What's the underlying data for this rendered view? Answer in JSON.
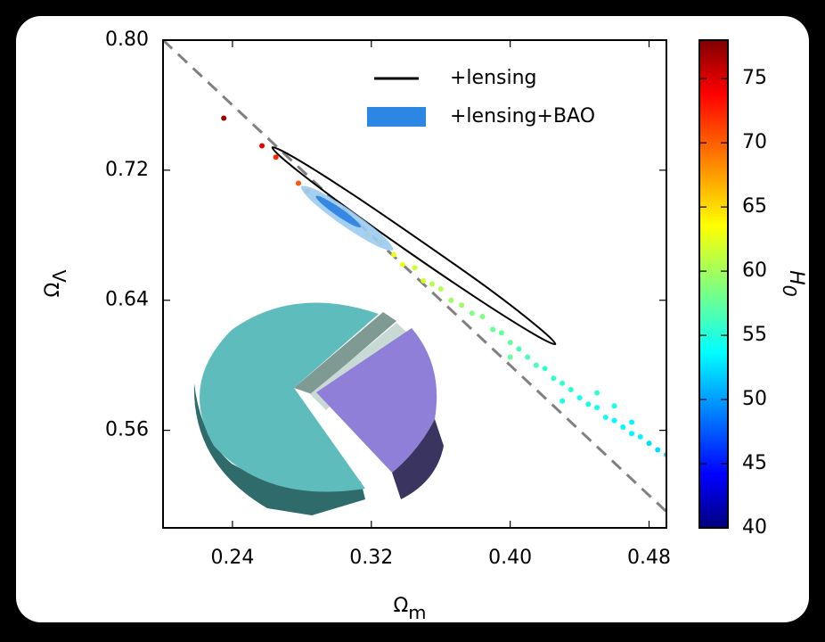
{
  "chart_data": {
    "type": "scatter",
    "xlabel": {
      "symbol": "Ω",
      "subscript": "m"
    },
    "ylabel": {
      "symbol": "Ω",
      "subscript": "Λ"
    },
    "xlim": [
      0.2,
      0.49
    ],
    "ylim": [
      0.5,
      0.8
    ],
    "xticks": [
      0.24,
      0.32,
      {
        "value": 0.4,
        "label": "0.40"
      },
      0.48
    ],
    "yticks": [
      {
        "value": 0.8,
        "label": "0.80"
      },
      0.72,
      0.64,
      0.56
    ],
    "points": {
      "colormap": "jet",
      "x": [
        0.235,
        0.257,
        0.265,
        0.278,
        0.283,
        0.29,
        0.3,
        0.31,
        0.318,
        0.325,
        0.333,
        0.338,
        0.345,
        0.35,
        0.355,
        0.36,
        0.366,
        0.372,
        0.378,
        0.384,
        0.39,
        0.395,
        0.4,
        0.405,
        0.41,
        0.415,
        0.42,
        0.425,
        0.43,
        0.435,
        0.44,
        0.445,
        0.45,
        0.455,
        0.46,
        0.465,
        0.47,
        0.475,
        0.48,
        0.485,
        0.49,
        0.4,
        0.43,
        0.46,
        0.47,
        0.45
      ],
      "y": [
        0.752,
        0.735,
        0.728,
        0.712,
        0.707,
        0.703,
        0.695,
        0.688,
        0.68,
        0.676,
        0.668,
        0.662,
        0.66,
        0.652,
        0.65,
        0.647,
        0.64,
        0.637,
        0.632,
        0.63,
        0.622,
        0.62,
        0.614,
        0.61,
        0.605,
        0.6,
        0.598,
        0.592,
        0.589,
        0.585,
        0.58,
        0.576,
        0.574,
        0.568,
        0.566,
        0.562,
        0.558,
        0.556,
        0.552,
        0.548,
        0.545,
        0.605,
        0.578,
        0.575,
        0.565,
        0.583
      ],
      "H0": [
        77,
        74,
        72,
        70,
        68,
        66,
        65,
        64,
        64,
        64,
        63,
        63,
        62,
        62,
        61,
        61,
        60,
        60,
        59,
        59,
        58,
        58,
        58,
        57,
        57,
        57,
        56,
        56,
        56,
        56,
        55,
        55,
        55,
        55,
        54,
        54,
        54,
        54,
        53,
        53,
        53,
        58,
        55,
        55,
        54,
        56
      ]
    },
    "reference_line": {
      "x": [
        0.2,
        0.49
      ],
      "y": [
        0.8,
        0.51
      ],
      "color": "#808080",
      "style": "dashed"
    },
    "series": [
      {
        "name": "+lensing",
        "kind": "contour",
        "color": "#000000",
        "x": [
          0.426,
          0.4138,
          0.383,
          0.3419,
          0.3015,
          0.2726,
          0.263,
          0.2752,
          0.306,
          0.3471,
          0.388,
          0.4164
        ],
        "y": [
          0.613,
          0.6191,
          0.6397,
          0.6694,
          0.7002,
          0.7239,
          0.734,
          0.728,
          0.7074,
          0.6776,
          0.6468,
          0.6232
        ]
      },
      {
        "name": "+lensing+BAO",
        "kind": "filled-contour",
        "color": "#2b87e3",
        "levels": [
          {
            "color": "#9ccbf0",
            "x": [
              0.3325,
              0.3229,
              0.3035,
              0.2855,
              0.2795,
              0.2891,
              0.3085,
              0.3265
            ],
            "y": [
              0.671,
              0.6735,
              0.686,
              0.7011,
              0.71,
              0.7075,
              0.695,
              0.6799
            ]
          },
          {
            "color": "#2a7fe0",
            "x": [
              0.314,
              0.3093,
              0.2998,
              0.291,
              0.288,
              0.2927,
              0.3022,
              0.311
            ],
            "y": [
              0.685,
              0.6862,
              0.6923,
              0.6997,
              0.704,
              0.7028,
              0.6967,
              0.6893
            ]
          }
        ]
      }
    ],
    "colorbar": {
      "label": {
        "symbol": "H",
        "subscript": "0"
      },
      "lim": [
        40,
        78
      ],
      "ticks": [
        40,
        45,
        50,
        55,
        60,
        65,
        70,
        75
      ]
    }
  }
}
